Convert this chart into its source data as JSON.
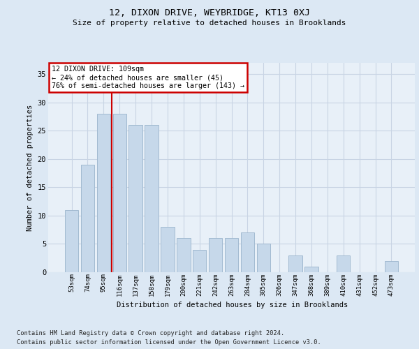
{
  "title1": "12, DIXON DRIVE, WEYBRIDGE, KT13 0XJ",
  "title2": "Size of property relative to detached houses in Brooklands",
  "xlabel": "Distribution of detached houses by size in Brooklands",
  "ylabel": "Number of detached properties",
  "categories": [
    "53sqm",
    "74sqm",
    "95sqm",
    "116sqm",
    "137sqm",
    "158sqm",
    "179sqm",
    "200sqm",
    "221sqm",
    "242sqm",
    "263sqm",
    "284sqm",
    "305sqm",
    "326sqm",
    "347sqm",
    "368sqm",
    "389sqm",
    "410sqm",
    "431sqm",
    "452sqm",
    "473sqm"
  ],
  "values": [
    11,
    19,
    28,
    28,
    26,
    26,
    8,
    6,
    4,
    6,
    6,
    7,
    5,
    0,
    3,
    1,
    0,
    3,
    0,
    0,
    2
  ],
  "bar_color": "#c6d8ea",
  "bar_edge_color": "#9ab4cc",
  "vline_x": 2.5,
  "vline_color": "#cc0000",
  "annotation_text": "12 DIXON DRIVE: 109sqm\n← 24% of detached houses are smaller (45)\n76% of semi-detached houses are larger (143) →",
  "annotation_box_color": "#ffffff",
  "annotation_box_edge": "#cc0000",
  "ylim": [
    0,
    37
  ],
  "yticks": [
    0,
    5,
    10,
    15,
    20,
    25,
    30,
    35
  ],
  "grid_color": "#c8d4e4",
  "footer1": "Contains HM Land Registry data © Crown copyright and database right 2024.",
  "footer2": "Contains public sector information licensed under the Open Government Licence v3.0.",
  "bg_color": "#dce8f4",
  "plot_bg_color": "#e8f0f8"
}
